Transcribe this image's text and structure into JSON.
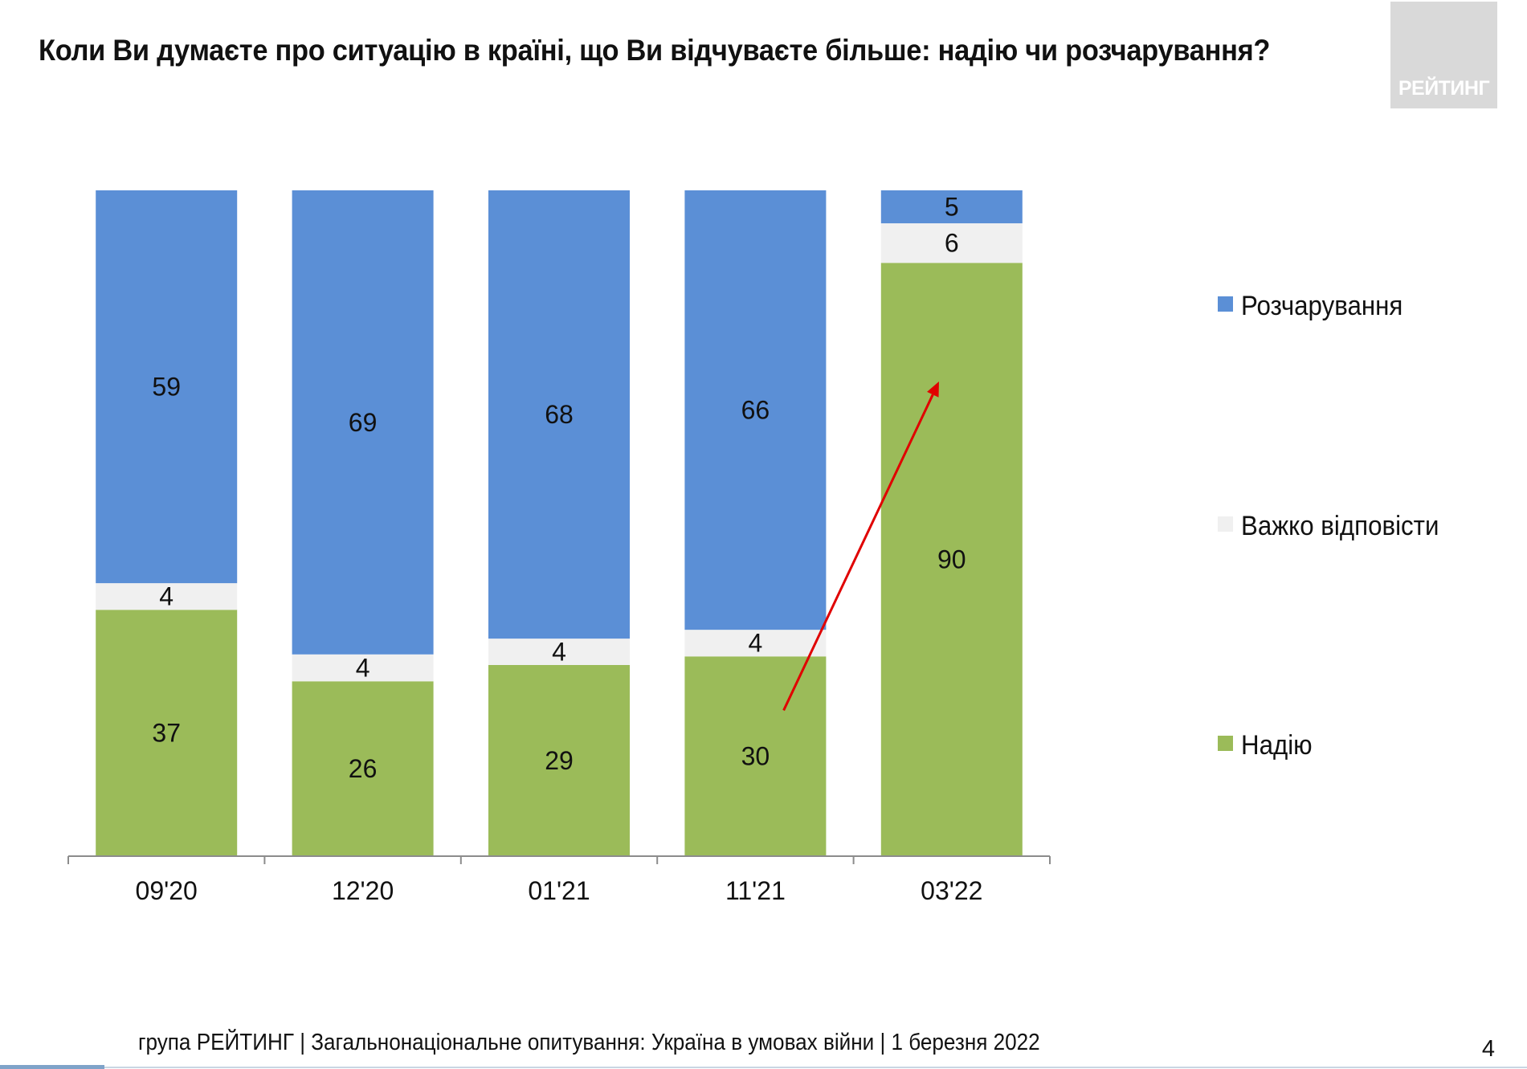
{
  "title": "Коли Ви думаєте про ситуацію в країні, що Ви відчуваєте більше: надію чи розчарування?",
  "logo": {
    "text": "РЕЙТИНГ"
  },
  "footer": {
    "text": "група РЕЙТИНГ | Загальнонаціональне опитування: Україна в умовах війни | 1 березня 2022",
    "page_number": "4"
  },
  "colors": {
    "disappointment": "#5b8fd6",
    "hard_to_say": "#f0f0f0",
    "hope": "#9bbb59",
    "arrow": "#e00000"
  },
  "legend": [
    {
      "label": "Розчарування",
      "color": "#5b8fd6"
    },
    {
      "label": "Важко відповісти",
      "color": "#f0f0f0"
    },
    {
      "label": "Надію",
      "color": "#9bbb59"
    }
  ],
  "chart_data": {
    "type": "bar",
    "stacked": true,
    "normalized_percent": true,
    "categories": [
      "09'20",
      "12'20",
      "01'21",
      "11'21",
      "03'22"
    ],
    "series": [
      {
        "name": "Надію",
        "color": "#9bbb59",
        "values": [
          37,
          26,
          29,
          30,
          90
        ]
      },
      {
        "name": "Важко відповісти",
        "color": "#f0f0f0",
        "values": [
          4,
          4,
          4,
          4,
          6
        ]
      },
      {
        "name": "Розчарування",
        "color": "#5b8fd6",
        "values": [
          59,
          69,
          68,
          66,
          5
        ]
      }
    ],
    "data_labels": true,
    "annotation": {
      "type": "arrow",
      "from_category": "11'21",
      "to_category": "03'22",
      "color": "#e00000"
    },
    "legend_position": "right",
    "grid": false
  }
}
